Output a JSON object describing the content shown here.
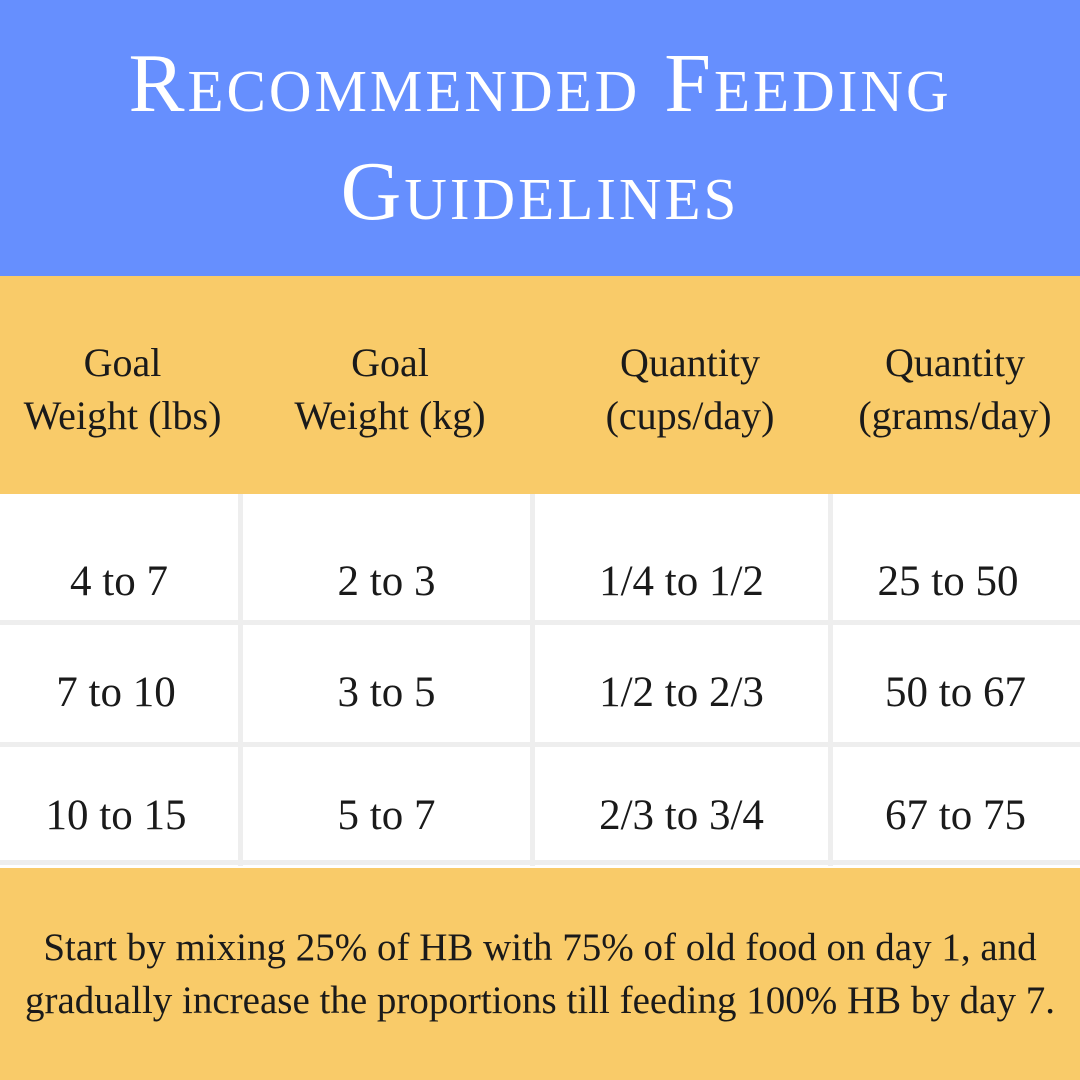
{
  "title": {
    "line1": "Recommended Feeding",
    "line2": "Guidelines"
  },
  "colors": {
    "title_band": "#668ffe",
    "accent_band": "#f9cb69",
    "grid_lines": "#eeeeee",
    "text": "#1a1a1a"
  },
  "table": {
    "headers": [
      {
        "line1": "Goal",
        "line2": "Weight (lbs)"
      },
      {
        "line1": "Goal",
        "line2": "Weight (kg)"
      },
      {
        "line1": "Quantity",
        "line2": "(cups/day)"
      },
      {
        "line1": "Quantity",
        "line2": "(grams/day)"
      }
    ],
    "rows": [
      [
        "4 to 7",
        "2 to 3",
        "1/4 to 1/2",
        "25 to 50"
      ],
      [
        "7 to 10",
        "3 to 5",
        "1/2 to 2/3",
        "50 to 67"
      ],
      [
        "10 to 15",
        "5 to 7",
        "2/3 to 3/4",
        "67 to 75"
      ]
    ]
  },
  "note": "Start by mixing 25% of HB with 75% of old food on day 1, and gradually increase the proportions till feeding 100% HB by day 7."
}
